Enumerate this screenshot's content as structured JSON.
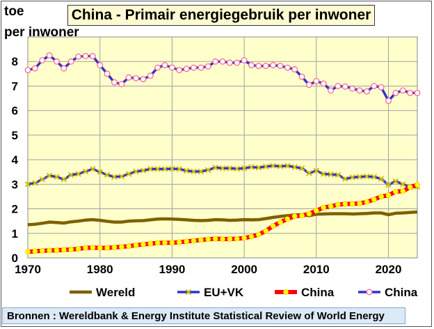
{
  "chart_data": {
    "type": "line",
    "title": "China -  Primair energiegebruik per inwoner",
    "ylabel_line1": "toe",
    "ylabel_line2": "per inwoner",
    "xlabel": "",
    "xlim": [
      1970,
      2024
    ],
    "ylim": [
      0,
      9
    ],
    "x_ticks": [
      "1970",
      "1980",
      "1990",
      "2000",
      "2010",
      "2020"
    ],
    "y_ticks": [
      "0",
      "1",
      "2",
      "3",
      "4",
      "5",
      "6",
      "7",
      "8"
    ],
    "grid": true,
    "legend_position": "bottom",
    "x": [
      1970,
      1971,
      1972,
      1973,
      1974,
      1975,
      1976,
      1977,
      1978,
      1979,
      1980,
      1981,
      1982,
      1983,
      1984,
      1985,
      1986,
      1987,
      1988,
      1989,
      1990,
      1991,
      1992,
      1993,
      1994,
      1995,
      1996,
      1997,
      1998,
      1999,
      2000,
      2001,
      2002,
      2003,
      2004,
      2005,
      2006,
      2007,
      2008,
      2009,
      2010,
      2011,
      2012,
      2013,
      2014,
      2015,
      2016,
      2017,
      2018,
      2019,
      2020,
      2021,
      2022,
      2023,
      2024
    ],
    "series": [
      {
        "name": "Wereld",
        "color": "#7f6000",
        "marker": "none",
        "values": [
          1.35,
          1.37,
          1.41,
          1.46,
          1.44,
          1.42,
          1.47,
          1.5,
          1.54,
          1.56,
          1.53,
          1.49,
          1.46,
          1.46,
          1.5,
          1.51,
          1.52,
          1.55,
          1.58,
          1.59,
          1.58,
          1.57,
          1.55,
          1.53,
          1.52,
          1.53,
          1.56,
          1.55,
          1.53,
          1.54,
          1.56,
          1.55,
          1.56,
          1.6,
          1.65,
          1.69,
          1.72,
          1.75,
          1.76,
          1.72,
          1.78,
          1.79,
          1.8,
          1.8,
          1.8,
          1.79,
          1.8,
          1.81,
          1.83,
          1.83,
          1.76,
          1.82,
          1.83,
          1.85,
          1.87
        ]
      },
      {
        "name": "EU+VK",
        "color": "#3333cc",
        "marker": "x",
        "values": [
          3.0,
          3.05,
          3.2,
          3.35,
          3.3,
          3.2,
          3.38,
          3.42,
          3.52,
          3.62,
          3.5,
          3.38,
          3.3,
          3.32,
          3.42,
          3.52,
          3.56,
          3.62,
          3.62,
          3.62,
          3.63,
          3.62,
          3.55,
          3.52,
          3.52,
          3.58,
          3.68,
          3.65,
          3.65,
          3.63,
          3.65,
          3.7,
          3.68,
          3.72,
          3.75,
          3.73,
          3.75,
          3.7,
          3.65,
          3.45,
          3.55,
          3.42,
          3.4,
          3.38,
          3.22,
          3.28,
          3.3,
          3.32,
          3.3,
          3.22,
          2.98,
          3.12,
          3.0,
          2.88,
          2.9
        ]
      },
      {
        "name": "China",
        "color": "#ff0000",
        "marker": "dot-yellow",
        "values": [
          0.25,
          0.27,
          0.29,
          0.3,
          0.31,
          0.33,
          0.34,
          0.37,
          0.41,
          0.42,
          0.41,
          0.41,
          0.43,
          0.45,
          0.48,
          0.52,
          0.55,
          0.58,
          0.61,
          0.62,
          0.62,
          0.64,
          0.67,
          0.7,
          0.73,
          0.76,
          0.78,
          0.77,
          0.77,
          0.78,
          0.81,
          0.87,
          0.95,
          1.1,
          1.3,
          1.45,
          1.58,
          1.7,
          1.72,
          1.8,
          1.92,
          2.05,
          2.1,
          2.17,
          2.2,
          2.2,
          2.22,
          2.28,
          2.38,
          2.5,
          2.55,
          2.7,
          2.72,
          2.88,
          2.98
        ]
      },
      {
        "name": "China",
        "color": "#3333cc",
        "marker": "circle-pink",
        "values": [
          7.65,
          7.72,
          8.05,
          8.25,
          8.0,
          7.72,
          8.0,
          8.2,
          8.22,
          8.22,
          7.85,
          7.5,
          7.15,
          7.08,
          7.35,
          7.32,
          7.28,
          7.42,
          7.75,
          7.85,
          7.75,
          7.65,
          7.7,
          7.75,
          7.75,
          7.8,
          8.0,
          8.0,
          7.95,
          7.95,
          8.05,
          7.85,
          7.82,
          7.82,
          7.85,
          7.82,
          7.75,
          7.68,
          7.38,
          7.05,
          7.2,
          7.1,
          6.82,
          7.0,
          6.98,
          6.9,
          6.82,
          6.78,
          7.0,
          6.95,
          6.4,
          6.72,
          6.82,
          6.72,
          6.72
        ]
      }
    ]
  },
  "source_text": "Bronnen : Wereldbank & Energy Institute Statistical Review of World Energy"
}
